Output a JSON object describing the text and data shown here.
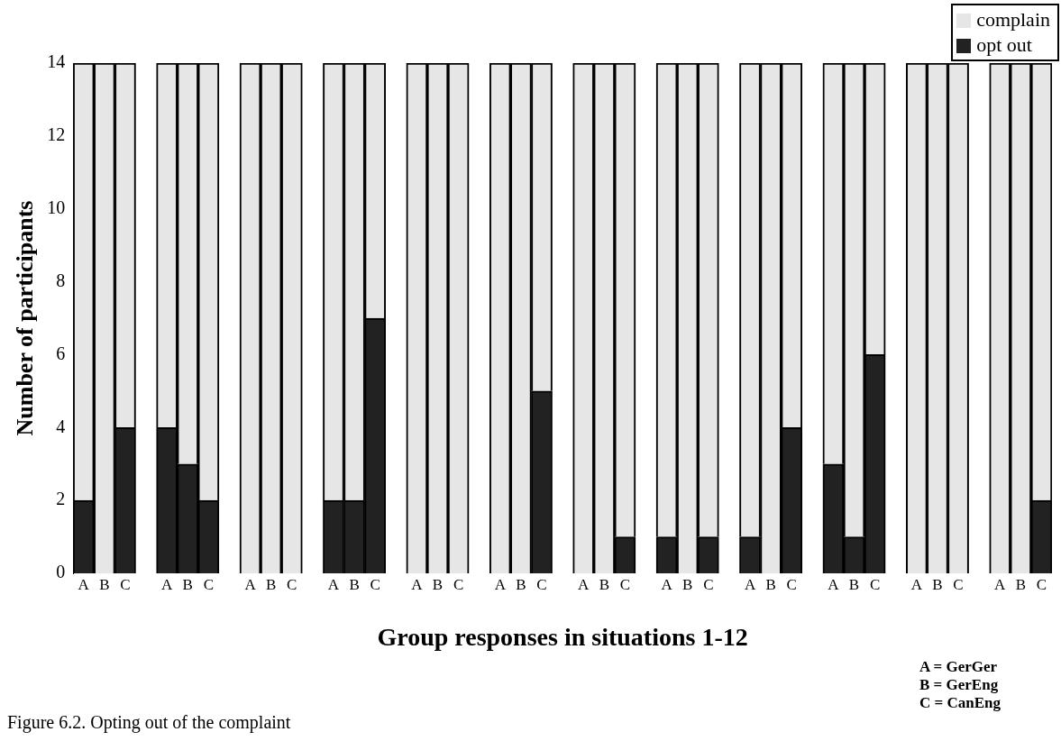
{
  "chart_data": {
    "type": "bar",
    "stacked": true,
    "xlabel": "Group responses in situations 1-12",
    "ylabel": "Number of participants",
    "categories": [
      "A",
      "B",
      "C",
      null,
      "A",
      "B",
      "C",
      null,
      "A",
      "B",
      "C",
      null,
      "A",
      "B",
      "C",
      null,
      "A",
      "B",
      "C",
      null,
      "A",
      "B",
      "C",
      null,
      "A",
      "B",
      "C",
      null,
      "A",
      "B",
      "C",
      null,
      "A",
      "B",
      "C",
      null,
      "A",
      "B",
      "C",
      null,
      "A",
      "B",
      "C",
      null,
      "A",
      "B",
      "C"
    ],
    "series": [
      {
        "name": "opt out",
        "color": "#222222",
        "values": [
          2,
          0,
          4,
          null,
          4,
          3,
          2,
          null,
          0,
          0,
          0,
          null,
          2,
          2,
          7,
          null,
          0,
          0,
          0,
          null,
          0,
          0,
          5,
          null,
          0,
          0,
          1,
          null,
          1,
          0,
          1,
          null,
          1,
          0,
          4,
          null,
          3,
          1,
          6,
          null,
          0,
          0,
          0,
          null,
          0,
          0,
          2
        ]
      },
      {
        "name": "complain",
        "color": "#e6e6e6",
        "values": [
          12,
          14,
          10,
          null,
          10,
          11,
          12,
          null,
          14,
          14,
          14,
          null,
          12,
          12,
          7,
          null,
          14,
          14,
          14,
          null,
          14,
          14,
          9,
          null,
          14,
          14,
          13,
          null,
          13,
          14,
          13,
          null,
          13,
          14,
          10,
          null,
          11,
          13,
          8,
          null,
          14,
          14,
          14,
          null,
          14,
          14,
          12
        ]
      }
    ],
    "ylim": [
      0,
      14
    ],
    "yticks": [
      0,
      2,
      4,
      6,
      8,
      10,
      12,
      14
    ],
    "grid": false,
    "legend": "top right",
    "annotations": [
      "Figure 6.2. Opting out of the complaint",
      "A = GerGer",
      "B = GerEng",
      "C = CanEng"
    ]
  }
}
